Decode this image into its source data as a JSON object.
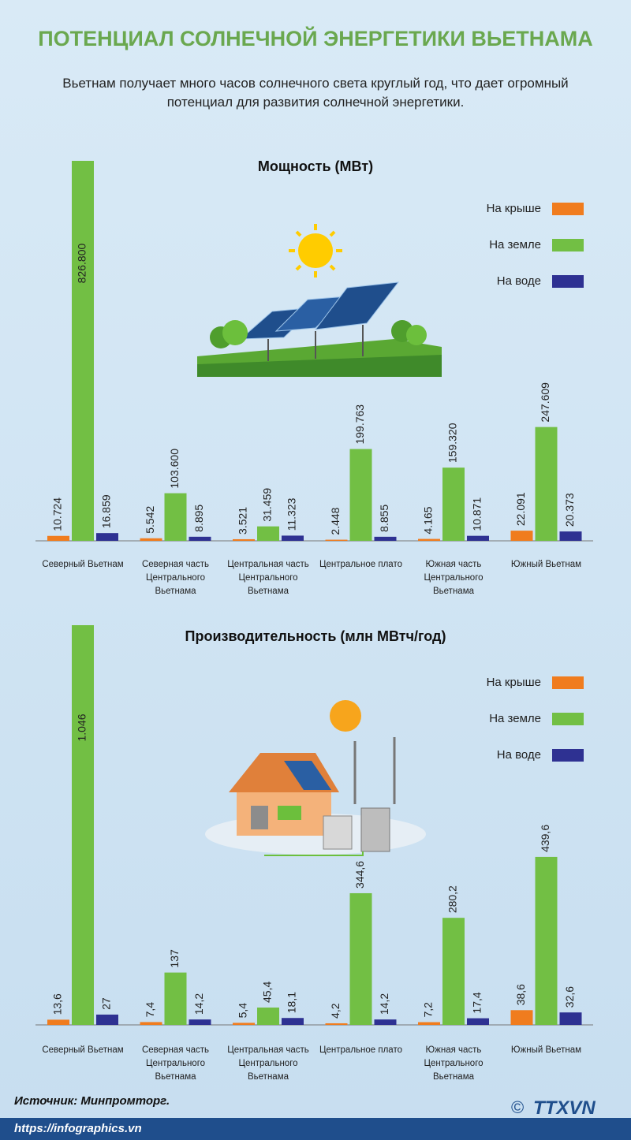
{
  "header": {
    "title": "ПОТЕНЦИАЛ СОЛНЕЧНОЙ ЭНЕРГЕТИКИ ВЬЕТНАМА",
    "subtitle": "Вьетнам получает много часов солнечного света круглый год, что дает огромный потенциал для развития солнечной энергетики."
  },
  "chart_data": [
    {
      "type": "bar",
      "title": "Мощность (МВт)",
      "legend": "top-right",
      "categories": [
        "Северный Вьетнам",
        "Северная часть Центрального Вьетнама",
        "Центральная часть Центрального Вьетнама",
        "Центральное плато",
        "Южная часть Центрального Вьетнама",
        "Южный Вьетнам"
      ],
      "series": [
        {
          "name": "На крыше",
          "color": "#f07c1e",
          "values": [
            10724,
            5542,
            3521,
            2448,
            4165,
            22091
          ],
          "value_labels": [
            "10.724",
            "5.542",
            "3.521",
            "2.448",
            "4.165",
            "22.091"
          ]
        },
        {
          "name": "На земле",
          "color": "#72bf44",
          "values": [
            826800,
            103600,
            31459,
            199763,
            159320,
            247609
          ],
          "value_labels": [
            "826.800",
            "103.600",
            "31.459",
            "199.763",
            "159.320",
            "247.609"
          ]
        },
        {
          "name": "На воде",
          "color": "#2e3192",
          "values": [
            16859,
            8895,
            11323,
            8855,
            10871,
            20373
          ],
          "value_labels": [
            "16.859",
            "8.895",
            "11.323",
            "8.855",
            "10.871",
            "20.373"
          ]
        }
      ]
    },
    {
      "type": "bar",
      "title": "Производительность (млн МВтч/год)",
      "legend": "top-right",
      "categories": [
        "Северный Вьетнам",
        "Северная часть Центрального Вьетнама",
        "Центральная часть Центрального Вьетнама",
        "Центральное плато",
        "Южная часть Центрального Вьетнама",
        "Южный Вьетнам"
      ],
      "series": [
        {
          "name": "На крыше",
          "color": "#f07c1e",
          "values": [
            13.6,
            7.4,
            5.4,
            4.2,
            7.2,
            38.6
          ],
          "value_labels": [
            "13,6",
            "7,4",
            "5,4",
            "4,2",
            "7,2",
            "38,6"
          ]
        },
        {
          "name": "На земле",
          "color": "#72bf44",
          "values": [
            1046,
            137,
            45.4,
            344.6,
            280.2,
            439.6
          ],
          "value_labels": [
            "1.046",
            "137",
            "45,4",
            "344,6",
            "280,2",
            "439,6"
          ]
        },
        {
          "name": "На воде",
          "color": "#2e3192",
          "values": [
            27,
            14.2,
            18.1,
            14.2,
            17.4,
            32.6
          ],
          "value_labels": [
            "27",
            "14,2",
            "18,1",
            "14,2",
            "17,4",
            "32,6"
          ]
        }
      ]
    }
  ],
  "footer": {
    "source": "Источник: Минпромторг.",
    "copyright": "©",
    "logo": "TTXVN",
    "url": "https://infographics.vn"
  }
}
